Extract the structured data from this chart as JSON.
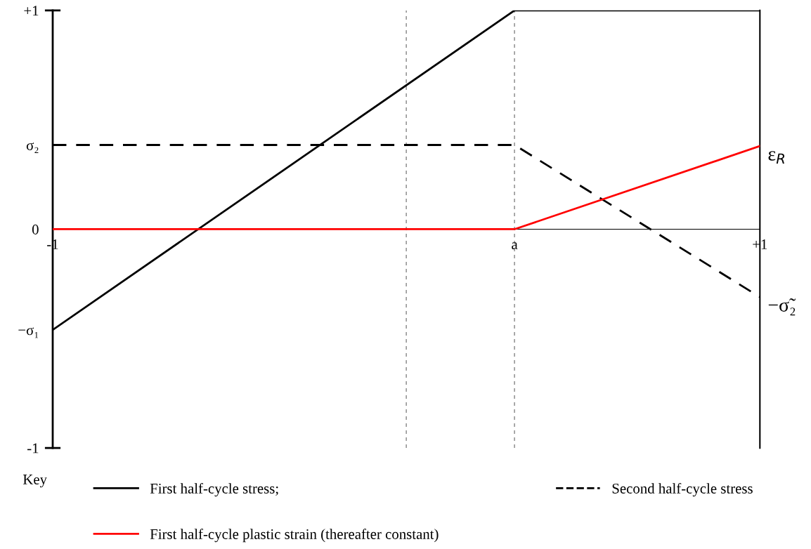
{
  "chart_data": {
    "type": "line",
    "legend_title": "Key",
    "legend": "bottom",
    "grid": false,
    "marker": "none",
    "xlim": [
      -1,
      1
    ],
    "ylim": [
      -1,
      1
    ],
    "xticks": [
      {
        "value": -1,
        "label": "-1"
      },
      {
        "value": 0.306,
        "label": "a"
      },
      {
        "value": 1,
        "label": "+1"
      }
    ],
    "yticks": [
      {
        "value": -1,
        "label": "-1"
      },
      {
        "value": -0.46,
        "label": "−σ₁"
      },
      0,
      {
        "value": 0.385,
        "label": "σ₂"
      },
      {
        "value": 1,
        "label": "+1"
      }
    ],
    "series": [
      {
        "name": "First half-cycle stress;",
        "color": "#000000",
        "line_style": "solid",
        "x": [
          -1,
          0.306,
          1
        ],
        "values": [
          -0.46,
          1,
          1
        ]
      },
      {
        "name": "Second half-cycle stress",
        "color": "#000000",
        "line_style": "dashed",
        "x": [
          -1,
          0.306,
          1
        ],
        "values": [
          0.385,
          0.385,
          -0.31
        ]
      },
      {
        "name": "First half-cycle plastic strain (thereafter constant)",
        "color": "#ff0000",
        "line_style": "solid",
        "x": [
          -1,
          0.306,
          1
        ],
        "values": [
          0,
          0,
          0.38
        ]
      }
    ],
    "ref_lines": [
      {
        "axis": "x",
        "value": 0,
        "color": "#999999",
        "line_style": "dotted"
      },
      {
        "axis": "x",
        "value": 0.306,
        "color": "#999999",
        "line_style": "dotted"
      }
    ],
    "annotations": [
      {
        "text": "ε$_{R}$",
        "x": 1,
        "y": 0.38
      },
      {
        "text": "−σ̃₂",
        "x": 1,
        "y": -0.31
      }
    ]
  }
}
